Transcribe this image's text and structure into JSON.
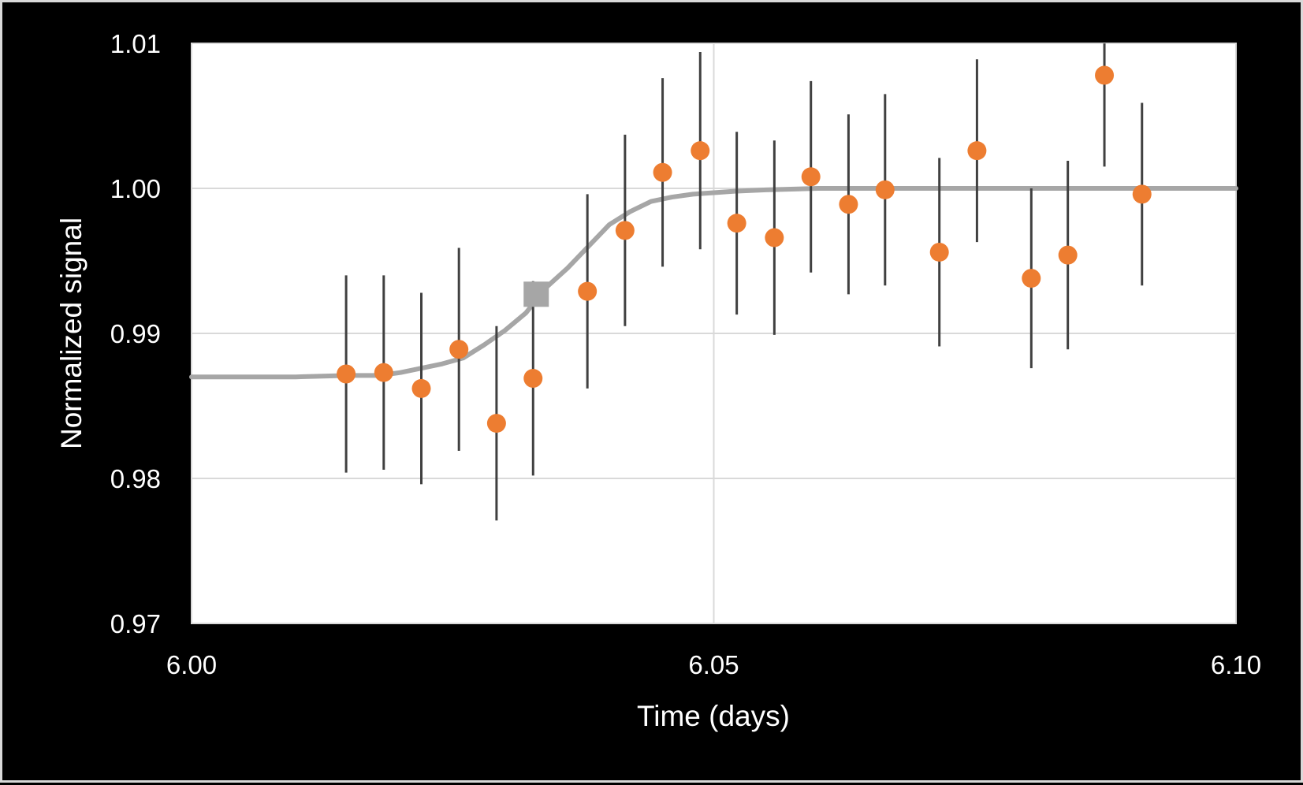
{
  "chart_data": {
    "type": "scatter",
    "title": "",
    "xlabel": "Time (days)",
    "ylabel": "Normalized signal",
    "xlim": [
      6.0,
      6.1
    ],
    "ylim": [
      0.97,
      1.01
    ],
    "x_ticks": [
      "6.00",
      "6.05",
      "6.10"
    ],
    "y_ticks": [
      "0.97",
      "0.98",
      "0.99",
      "1.00",
      "1.01"
    ],
    "x_tick_values": [
      6.0,
      6.05,
      6.1
    ],
    "y_tick_values": [
      0.97,
      0.98,
      0.99,
      1.0,
      1.01
    ],
    "grid": true,
    "legend": "none",
    "series": [
      {
        "type": "scatter-errorbar",
        "color": "#ED7D31",
        "error_color": "#404040",
        "points": [
          {
            "x": 6.0148,
            "y": 0.9872,
            "err": 0.0068
          },
          {
            "x": 6.0184,
            "y": 0.9873,
            "err": 0.0067
          },
          {
            "x": 6.022,
            "y": 0.9862,
            "err": 0.0066
          },
          {
            "x": 6.0256,
            "y": 0.9889,
            "err": 0.007
          },
          {
            "x": 6.0292,
            "y": 0.9838,
            "err": 0.0067
          },
          {
            "x": 6.0327,
            "y": 0.9869,
            "err": 0.0067
          },
          {
            "x": 6.0379,
            "y": 0.9929,
            "err": 0.0067
          },
          {
            "x": 6.0415,
            "y": 0.9971,
            "err": 0.0066
          },
          {
            "x": 6.0451,
            "y": 1.0011,
            "err": 0.0065
          },
          {
            "x": 6.0487,
            "y": 1.0026,
            "err": 0.0068
          },
          {
            "x": 6.0522,
            "y": 0.9976,
            "err": 0.0063
          },
          {
            "x": 6.0558,
            "y": 0.9966,
            "err": 0.0067
          },
          {
            "x": 6.0593,
            "y": 1.0008,
            "err": 0.0066
          },
          {
            "x": 6.0629,
            "y": 0.9989,
            "err": 0.0062
          },
          {
            "x": 6.0664,
            "y": 0.9999,
            "err": 0.0066
          },
          {
            "x": 6.0716,
            "y": 0.9956,
            "err": 0.0065
          },
          {
            "x": 6.0752,
            "y": 1.0026,
            "err": 0.0063
          },
          {
            "x": 6.0804,
            "y": 0.9938,
            "err": 0.0062
          },
          {
            "x": 6.0839,
            "y": 0.9954,
            "err": 0.0065
          },
          {
            "x": 6.0874,
            "y": 1.0078,
            "err": 0.0063
          },
          {
            "x": 6.091,
            "y": 0.9996,
            "err": 0.0063
          }
        ]
      },
      {
        "type": "line",
        "color": "#A6A6A6",
        "x": [
          6.0,
          6.005,
          6.01,
          6.015,
          6.018,
          6.02,
          6.022,
          6.024,
          6.026,
          6.028,
          6.03,
          6.032,
          6.034,
          6.036,
          6.038,
          6.04,
          6.042,
          6.044,
          6.046,
          6.048,
          6.05,
          6.052,
          6.055,
          6.06,
          6.07,
          6.08,
          6.09,
          6.1
        ],
        "y": [
          0.987,
          0.987,
          0.987,
          0.9871,
          0.9871,
          0.9873,
          0.9876,
          0.9879,
          0.9883,
          0.9892,
          0.9902,
          0.9914,
          0.9932,
          0.9945,
          0.996,
          0.9975,
          0.9984,
          0.9991,
          0.9994,
          0.9996,
          0.9997,
          0.9998,
          0.9999,
          1.0,
          1.0,
          1.0,
          1.0,
          1.0
        ]
      },
      {
        "type": "marker",
        "shape": "square",
        "color": "#A6A6A6",
        "x": 6.033,
        "y": 0.9927
      }
    ]
  }
}
